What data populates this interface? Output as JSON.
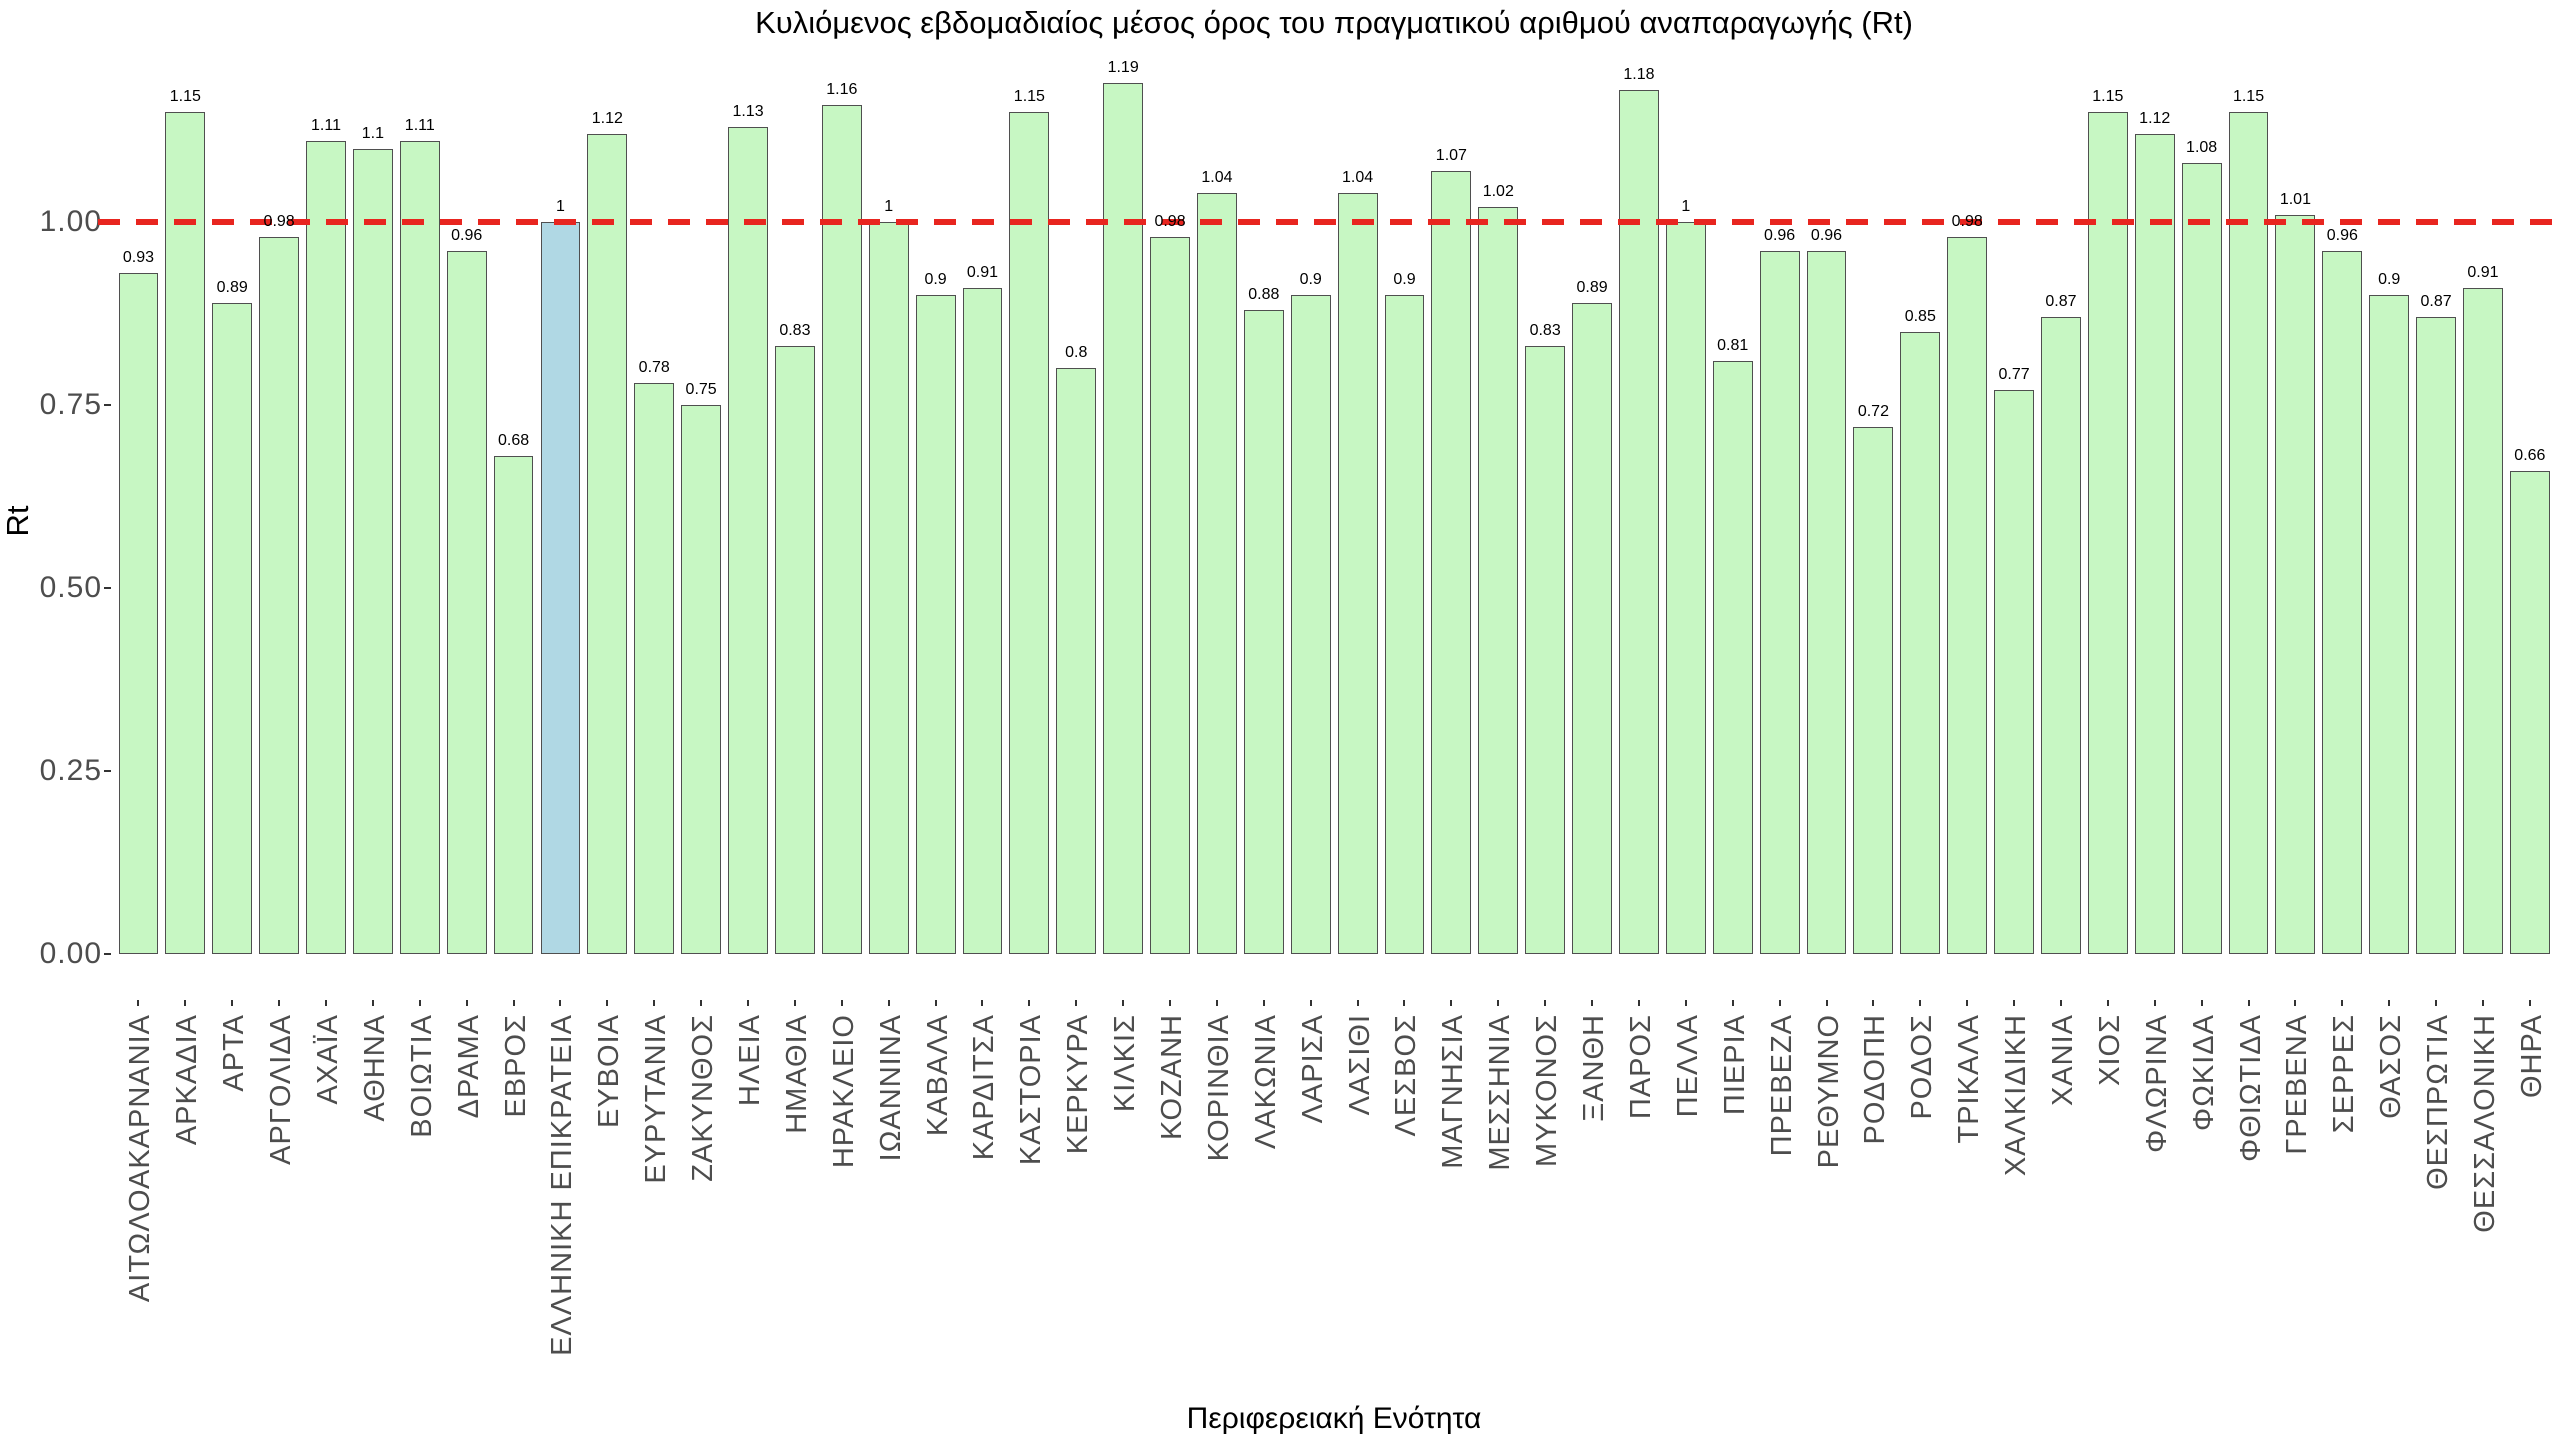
{
  "chart_data": {
    "type": "bar",
    "title": "Κυλιόμενος εβδομαδιαίος μέσος όρος του πραγματικού αριθμού αναπαραγωγής (Rt)",
    "xlabel": "Περιφερειακή Ενότητα",
    "ylabel": "Rt",
    "ylim": [
      0,
      1.25
    ],
    "grid": false,
    "legend_position": "none",
    "bar_color": "#c7f7c3",
    "bar_border_color": "#4f4f4f",
    "highlight_category": "ΕΛΛΗΝΙΚΗ ΕΠΙΚΡΑΤΕΙΑ",
    "highlight_index": 9,
    "highlight_color": "#b0d8e4",
    "reference_line": {
      "value": 1,
      "color": "#e8251f",
      "style": "dashed"
    },
    "y_ticks": [
      {
        "label": "0.00",
        "value": 0
      },
      {
        "label": "0.25",
        "value": 0.25
      },
      {
        "label": "0.50",
        "value": 0.5
      },
      {
        "label": "0.75",
        "value": 0.75
      },
      {
        "label": "1.00",
        "value": 1
      }
    ],
    "categories": [
      "ΑΙΤΩΛΟΑΚΑΡΝΑΝΙΑ",
      "ΑΡΚΑΔΙΑ",
      "ΑΡΤΑ",
      "ΑΡΓΟΛΙΔΑ",
      "ΑΧΑΪΑ",
      "ΑΘΗΝΑ",
      "ΒΟΙΩΤΙΑ",
      "ΔΡΑΜΑ",
      "ΕΒΡΟΣ",
      "ΕΛΛΗΝΙΚΗ ΕΠΙΚΡΑΤΕΙΑ",
      "ΕΥΒΟΙΑ",
      "ΕΥΡΥΤΑΝΙΑ",
      "ΖΑΚΥΝΘΟΣ",
      "ΗΛΕΙΑ",
      "ΗΜΑΘΙΑ",
      "ΗΡΑΚΛΕΙΟ",
      "ΙΩΑΝΝΙΝΑ",
      "ΚΑΒΑΛΑ",
      "ΚΑΡΔΙΤΣΑ",
      "ΚΑΣΤΟΡΙΑ",
      "ΚΕΡΚΥΡΑ",
      "ΚΙΛΚΙΣ",
      "ΚΟΖΑΝΗ",
      "ΚΟΡΙΝΘΙΑ",
      "ΛΑΚΩΝΙΑ",
      "ΛΑΡΙΣΑ",
      "ΛΑΣΙΘΙ",
      "ΛΕΣΒΟΣ",
      "ΜΑΓΝΗΣΙΑ",
      "ΜΕΣΣΗΝΙΑ",
      "ΜΥΚΟΝΟΣ",
      "ΞΑΝΘΗ",
      "ΠΑΡΟΣ",
      "ΠΕΛΛΑ",
      "ΠΙΕΡΙΑ",
      "ΠΡΕΒΕΖΑ",
      "ΡΕΘΥΜΝΟ",
      "ΡΟΔΟΠΗ",
      "ΡΟΔΟΣ",
      "ΤΡΙΚΑΛΑ",
      "ΧΑΛΚΙΔΙΚΗ",
      "ΧΑΝΙΑ",
      "ΧΙΟΣ",
      "ΦΛΩΡΙΝΑ",
      "ΦΩΚΙΔΑ",
      "ΦΘΙΩΤΙΔΑ",
      "ΓΡΕΒΕΝΑ",
      "ΣΕΡΡΕΣ",
      "ΘΑΣΟΣ",
      "ΘΕΣΠΡΩΤΙΑ",
      "ΘΕΣΣΑΛΟΝΙΚΗ",
      "ΘΗΡΑ"
    ],
    "values": [
      0.93,
      1.15,
      0.89,
      0.98,
      1.11,
      1.1,
      1.11,
      0.96,
      0.68,
      1,
      1.12,
      0.78,
      0.75,
      1.13,
      0.83,
      1.16,
      1,
      0.9,
      0.91,
      1.15,
      0.8,
      1.19,
      0.98,
      1.04,
      0.88,
      0.9,
      1.04,
      0.9,
      1.07,
      1.02,
      0.83,
      0.89,
      1.18,
      1,
      0.81,
      0.96,
      0.96,
      0.72,
      0.85,
      0.98,
      0.77,
      0.87,
      1.15,
      1.12,
      1.08,
      1.15,
      1.01,
      0.96,
      0.9,
      0.87,
      0.91,
      0.66
    ],
    "value_labels": [
      "0.93",
      "1.15",
      "0.89",
      "0.98",
      "1.11",
      "1.1",
      "1.11",
      "0.96",
      "0.68",
      "1",
      "1.12",
      "0.78",
      "0.75",
      "1.13",
      "0.83",
      "1.16",
      "1",
      "0.9",
      "0.91",
      "1.15",
      "0.8",
      "1.19",
      "0.98",
      "1.04",
      "0.88",
      "0.9",
      "1.04",
      "0.9",
      "1.07",
      "1.02",
      "0.83",
      "0.89",
      "1.18",
      "1",
      "0.81",
      "0.96",
      "0.96",
      "0.72",
      "0.85",
      "0.98",
      "0.77",
      "0.87",
      "1.15",
      "1.12",
      "1.08",
      "1.15",
      "1.01",
      "0.96",
      "0.9",
      "0.87",
      "0.91",
      "0.66"
    ]
  }
}
